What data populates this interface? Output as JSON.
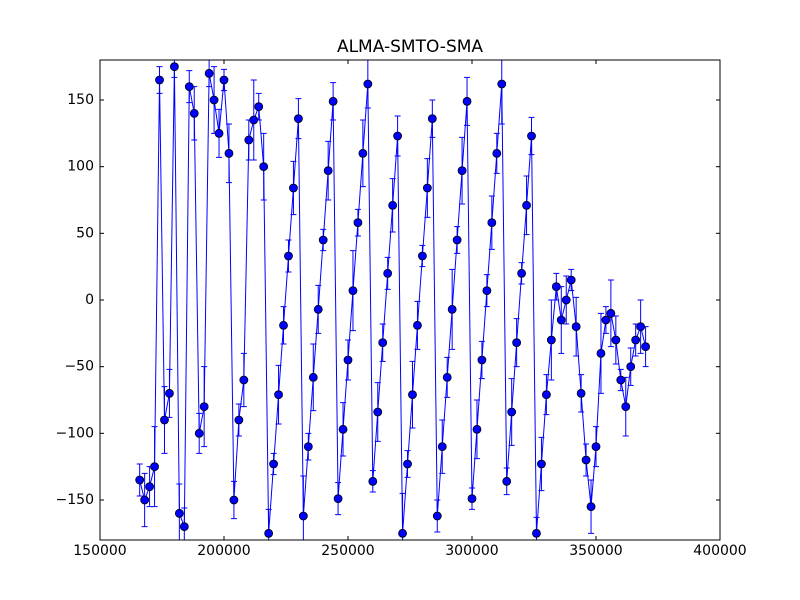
{
  "chart_data": {
    "type": "errorbar",
    "title": "ALMA-SMTO-SMA",
    "x": [
      166000,
      168000,
      170000,
      172000,
      174000,
      176000,
      178000,
      180000,
      182000,
      184000,
      186000,
      188000,
      190000,
      192000,
      194000,
      196000,
      198000,
      200000,
      202000,
      204000,
      206000,
      208000,
      210000,
      212000,
      214000,
      216000,
      218000,
      220000,
      222000,
      224000,
      226000,
      228000,
      230000,
      232000,
      234000,
      236000,
      238000,
      240000,
      242000,
      244000,
      246000,
      248000,
      250000,
      252000,
      254000,
      256000,
      258000,
      260000,
      262000,
      264000,
      266000,
      268000,
      270000,
      272000,
      274000,
      276000,
      278000,
      280000,
      282000,
      284000,
      286000,
      288000,
      290000,
      292000,
      294000,
      296000,
      298000,
      300000,
      302000,
      304000,
      306000,
      308000,
      310000,
      312000,
      314000,
      316000,
      318000,
      320000,
      322000,
      324000,
      326000,
      328000,
      330000,
      332000,
      334000,
      336000,
      338000,
      340000,
      342000,
      344000,
      346000,
      348000,
      350000,
      352000,
      354000,
      356000,
      358000,
      360000,
      362000,
      364000,
      366000,
      368000,
      370000
    ],
    "series": [
      {
        "color": "#0000ff",
        "values": [
          -135,
          -150,
          -140,
          -125,
          165,
          -90,
          -70,
          175,
          -160,
          -170,
          160,
          140,
          -100,
          -80,
          170,
          150,
          125,
          165,
          110,
          -150,
          -90,
          -60,
          120,
          135,
          145,
          100,
          -175,
          -123,
          -71,
          -19,
          33,
          84,
          136,
          -162,
          -110,
          -58,
          -7,
          45,
          97,
          149,
          -149,
          -97,
          -45,
          7,
          58,
          110,
          162,
          -136,
          -84,
          -32,
          20,
          71,
          123,
          -175,
          -123,
          -71,
          -19,
          33,
          84,
          136,
          -162,
          -110,
          -58,
          -7,
          45,
          97,
          149,
          -149,
          -97,
          -45,
          7,
          58,
          110,
          162,
          -136,
          -84,
          -32,
          20,
          71,
          123,
          -175,
          -123,
          -71,
          -30,
          10,
          -15,
          0,
          15,
          -20,
          -70,
          -120,
          -155,
          -110,
          -40,
          -15,
          -10,
          -30,
          -60,
          -80,
          -50,
          -30,
          -20,
          -35
        ],
        "errors": [
          12,
          20,
          15,
          30,
          10,
          25,
          18,
          8,
          22,
          14,
          12,
          20,
          15,
          30,
          10,
          25,
          18,
          8,
          22,
          14,
          12,
          20,
          15,
          30,
          10,
          25,
          18,
          8,
          22,
          14,
          12,
          20,
          15,
          30,
          10,
          25,
          18,
          8,
          22,
          14,
          12,
          20,
          15,
          30,
          10,
          25,
          18,
          8,
          22,
          14,
          12,
          20,
          15,
          30,
          10,
          25,
          18,
          8,
          22,
          14,
          12,
          20,
          15,
          30,
          10,
          25,
          18,
          8,
          22,
          14,
          12,
          20,
          15,
          30,
          10,
          25,
          18,
          8,
          22,
          14,
          12,
          20,
          15,
          30,
          10,
          25,
          18,
          8,
          22,
          14,
          12,
          20,
          15,
          30,
          10,
          25,
          18,
          8,
          22,
          14,
          12,
          20,
          15
        ]
      }
    ],
    "xlim": [
      150000,
      400000
    ],
    "xticks": [
      150000,
      200000,
      250000,
      300000,
      350000,
      400000
    ],
    "ylim": [
      -180,
      180
    ],
    "yticks": [
      {
        "value": -150,
        "label": "−150"
      },
      {
        "value": -100,
        "label": "−100"
      },
      {
        "value": -50,
        "label": "−50"
      },
      0,
      50,
      100,
      150
    ]
  }
}
